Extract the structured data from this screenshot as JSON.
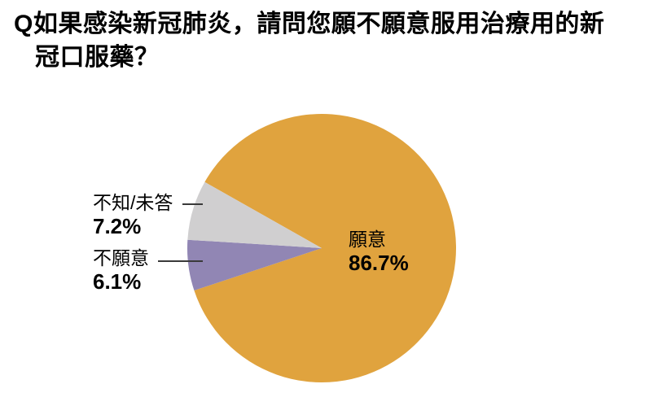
{
  "page": {
    "background": "#FFFFFF"
  },
  "title": {
    "lines": [
      "Q如果感染新冠肺炎，請問您願不願意服用治療用的新",
      "冠口服藥？"
    ],
    "full_text": "Q如果感染新冠肺炎，請問您願不願意服用治療用的新冠口服藥？"
  },
  "chart_data": {
    "type": "pie",
    "title": "如果感染新冠肺炎，請問您願不願意服用治療用的新冠口服藥？",
    "unit": "%",
    "rotation_deg_from_top_clockwise": -60.5,
    "direction": "clockwise",
    "legend_position": "none",
    "text_color": "#000000",
    "leader_line_color": "#3A3A3A",
    "slices": [
      {
        "label": "願意",
        "value": 86.7,
        "pct_text": "86.7%",
        "color": "#E0A33E",
        "label_position": "inside-right"
      },
      {
        "label": "不願意",
        "value": 6.1,
        "pct_text": "6.1%",
        "color": "#9186B4",
        "label_position": "outside-left"
      },
      {
        "label": "不知/未答",
        "value": 7.2,
        "pct_text": "7.2%",
        "color": "#D0CFD0",
        "label_position": "outside-left"
      }
    ]
  }
}
